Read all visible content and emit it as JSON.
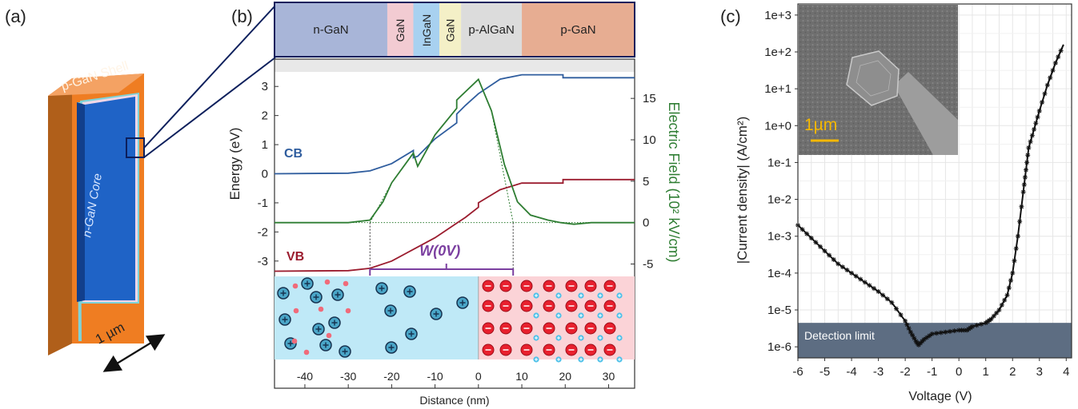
{
  "panel_labels": [
    "(a)",
    "(b)",
    "(c)"
  ],
  "panel_a": {
    "shell_label": "p-GaN Shell",
    "core_label": "n-GaN Core",
    "scale_label": "1 µm",
    "colors": {
      "shell": "#ef7d22",
      "core": "#1f63c6",
      "core_dark": "#123f8c",
      "band": "#7fd3d8"
    }
  },
  "panel_b": {
    "layers": [
      {
        "name": "n-GaN",
        "color": "#a8b5d8",
        "from": -47,
        "to": -21
      },
      {
        "name": "GaN",
        "color": "#f2cbd2",
        "from": -21,
        "to": -15
      },
      {
        "name": "InGaN",
        "color": "#a8d1f0",
        "from": -15,
        "to": -9
      },
      {
        "name": "GaN",
        "color": "#f4f0c7",
        "from": -9,
        "to": -4
      },
      {
        "name": "p-AlGaN",
        "color": "#dcdcdc",
        "from": -4,
        "to": 10
      },
      {
        "name": "p-GaN",
        "color": "#e7ad92",
        "from": 10,
        "to": 36
      }
    ],
    "band_labels": {
      "cb": "CB",
      "vb": "VB"
    },
    "depletion_label": "W(0V)",
    "colors": {
      "cb": "#2f5d9e",
      "vb": "#9b1c2e",
      "field": "#2e7d32",
      "n_region": "#bfe9f7",
      "p_region": "#fbd3d7"
    }
  },
  "chart_data": [
    {
      "type": "line",
      "xlabel": "Distance (nm)",
      "ylabel": "Energy (eV)",
      "y2label": "Electric Field (10² kV/cm)",
      "xlim": [
        -47,
        36
      ],
      "ylim": [
        -3.5,
        3.5
      ],
      "y2lim": [
        -6.4,
        18.2
      ],
      "xticks": [
        -40,
        -30,
        -20,
        -10,
        0,
        10,
        20,
        30
      ],
      "yticks": [
        3,
        2,
        1,
        0,
        -1,
        -2,
        -3
      ],
      "y2ticks": [
        15,
        10,
        5,
        0,
        -5
      ],
      "series": [
        {
          "name": "CB",
          "axis": "left",
          "x": [
            -47,
            -30,
            -25,
            -20,
            -15,
            -15,
            -14,
            -10,
            -5,
            -5,
            -3,
            0,
            5,
            10,
            19.5,
            19.5,
            36
          ],
          "y": [
            0,
            0.02,
            0.1,
            0.35,
            0.8,
            0.55,
            0.6,
            1.2,
            1.75,
            2.05,
            2.35,
            2.75,
            3.25,
            3.4,
            3.4,
            3.3,
            3.3
          ]
        },
        {
          "name": "VB",
          "axis": "left",
          "x": [
            -47,
            -30,
            -25,
            -20,
            -15,
            -10,
            -5,
            -3,
            0,
            0,
            5,
            10,
            19.5,
            19.5,
            36
          ],
          "y": [
            -3.35,
            -3.33,
            -3.25,
            -3.0,
            -2.6,
            -2.2,
            -1.7,
            -1.5,
            -1.15,
            -1.0,
            -0.55,
            -0.32,
            -0.32,
            -0.2,
            -0.2
          ]
        },
        {
          "name": "Electric Field",
          "axis": "right",
          "x": [
            -47,
            -30,
            -25,
            -22,
            -20,
            -15,
            -14,
            -10,
            -5,
            -5,
            0,
            3,
            6,
            9,
            12,
            16,
            19,
            22,
            26,
            36
          ],
          "y": [
            0,
            0,
            0.3,
            2.5,
            4.8,
            8.4,
            6.8,
            10.6,
            13.8,
            14.8,
            17.3,
            13.5,
            7,
            2.5,
            0.9,
            0.3,
            0.0,
            -0.2,
            0,
            0
          ]
        }
      ],
      "depletion_bounds": [
        -25,
        8
      ]
    },
    {
      "type": "line",
      "xlabel": "Voltage (V)",
      "ylabel": "|Current density| (A/cm²)",
      "scale_y": "log",
      "xlim": [
        -6,
        4.2
      ],
      "ylim_log10": [
        -6.3,
        3.3
      ],
      "xticks": [
        "-6",
        "-5",
        "-4",
        "-3",
        "-2",
        "-1",
        "0",
        "1",
        "2",
        "3",
        "4"
      ],
      "yticks": [
        "1e+3",
        "1e+2",
        "1e+1",
        "1e+0",
        "1e-1",
        "1e-2",
        "1e-3",
        "1e-4",
        "1e-5",
        "1e-6"
      ],
      "series": [
        {
          "name": "",
          "x": [
            -6,
            -5.5,
            -5,
            -4.5,
            -4,
            -3.5,
            -3,
            -2.5,
            -2,
            -1.8,
            -1.6,
            -1.5,
            -1.3,
            -1,
            -0.5,
            0,
            0.3,
            0.5,
            1,
            1.2,
            1.5,
            1.8,
            2,
            2.2,
            2.4,
            2.5,
            2.6,
            2.8,
            3,
            3.3,
            3.6,
            3.9
          ],
          "y_log10": [
            -2.7,
            -3.05,
            -3.4,
            -3.75,
            -4.0,
            -4.25,
            -4.5,
            -4.8,
            -5.3,
            -5.6,
            -5.85,
            -5.95,
            -5.8,
            -5.65,
            -5.6,
            -5.55,
            -5.55,
            -5.45,
            -5.35,
            -5.25,
            -5.0,
            -4.6,
            -4.0,
            -3.0,
            -1.8,
            -1.2,
            -0.6,
            -0.1,
            0.4,
            1.1,
            1.7,
            2.2
          ]
        }
      ],
      "annotations": {
        "detection_limit": "Detection limit",
        "inset_scale": "1µm"
      },
      "detection_limit_log10": -5.35,
      "colors": {
        "line": "#111111",
        "detection": "#5d6d82"
      }
    }
  ]
}
